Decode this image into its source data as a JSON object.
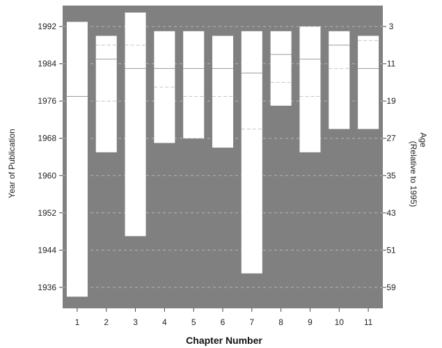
{
  "chart_data": {
    "type": "bar",
    "xlabel": "Chapter  Number",
    "ylabel": "Year of Publication",
    "y2label_line1": "Age",
    "y2label_line2": "(Relative to 1995)",
    "ylim": [
      1931.5,
      1996.5
    ],
    "categories": [
      "1",
      "2",
      "3",
      "4",
      "5",
      "6",
      "7",
      "8",
      "9",
      "10",
      "11"
    ],
    "y_ticks": [
      1992,
      1984,
      1976,
      1968,
      1960,
      1952,
      1944,
      1936
    ],
    "y2_ticks": [
      3,
      11,
      19,
      27,
      35,
      43,
      51,
      59
    ],
    "series": [
      {
        "values_top": [
          1993,
          1990,
          1995,
          1991,
          1991,
          1990,
          1991,
          1991,
          1992,
          1991,
          1990
        ],
        "values_bottom": [
          1934,
          1965,
          1947,
          1967,
          1968,
          1966,
          1939,
          1975,
          1965,
          1970,
          1970
        ],
        "median": [
          1977,
          1985,
          1983,
          1983,
          1983,
          1983,
          1982,
          1986,
          1985,
          1988,
          1983
        ],
        "upper_quartile": [
          null,
          1988,
          1988,
          null,
          null,
          null,
          null,
          null,
          null,
          1983,
          1989
        ],
        "lower_quartile": [
          null,
          1976,
          null,
          1979,
          1977,
          1977,
          1970,
          1980,
          1977,
          null,
          null
        ]
      }
    ],
    "colors": {
      "background": "#808080",
      "box": "#ffffff",
      "median": "#9a9a9a",
      "quartile": "#c4c4c4",
      "gridline": "#b4b4b4"
    }
  }
}
